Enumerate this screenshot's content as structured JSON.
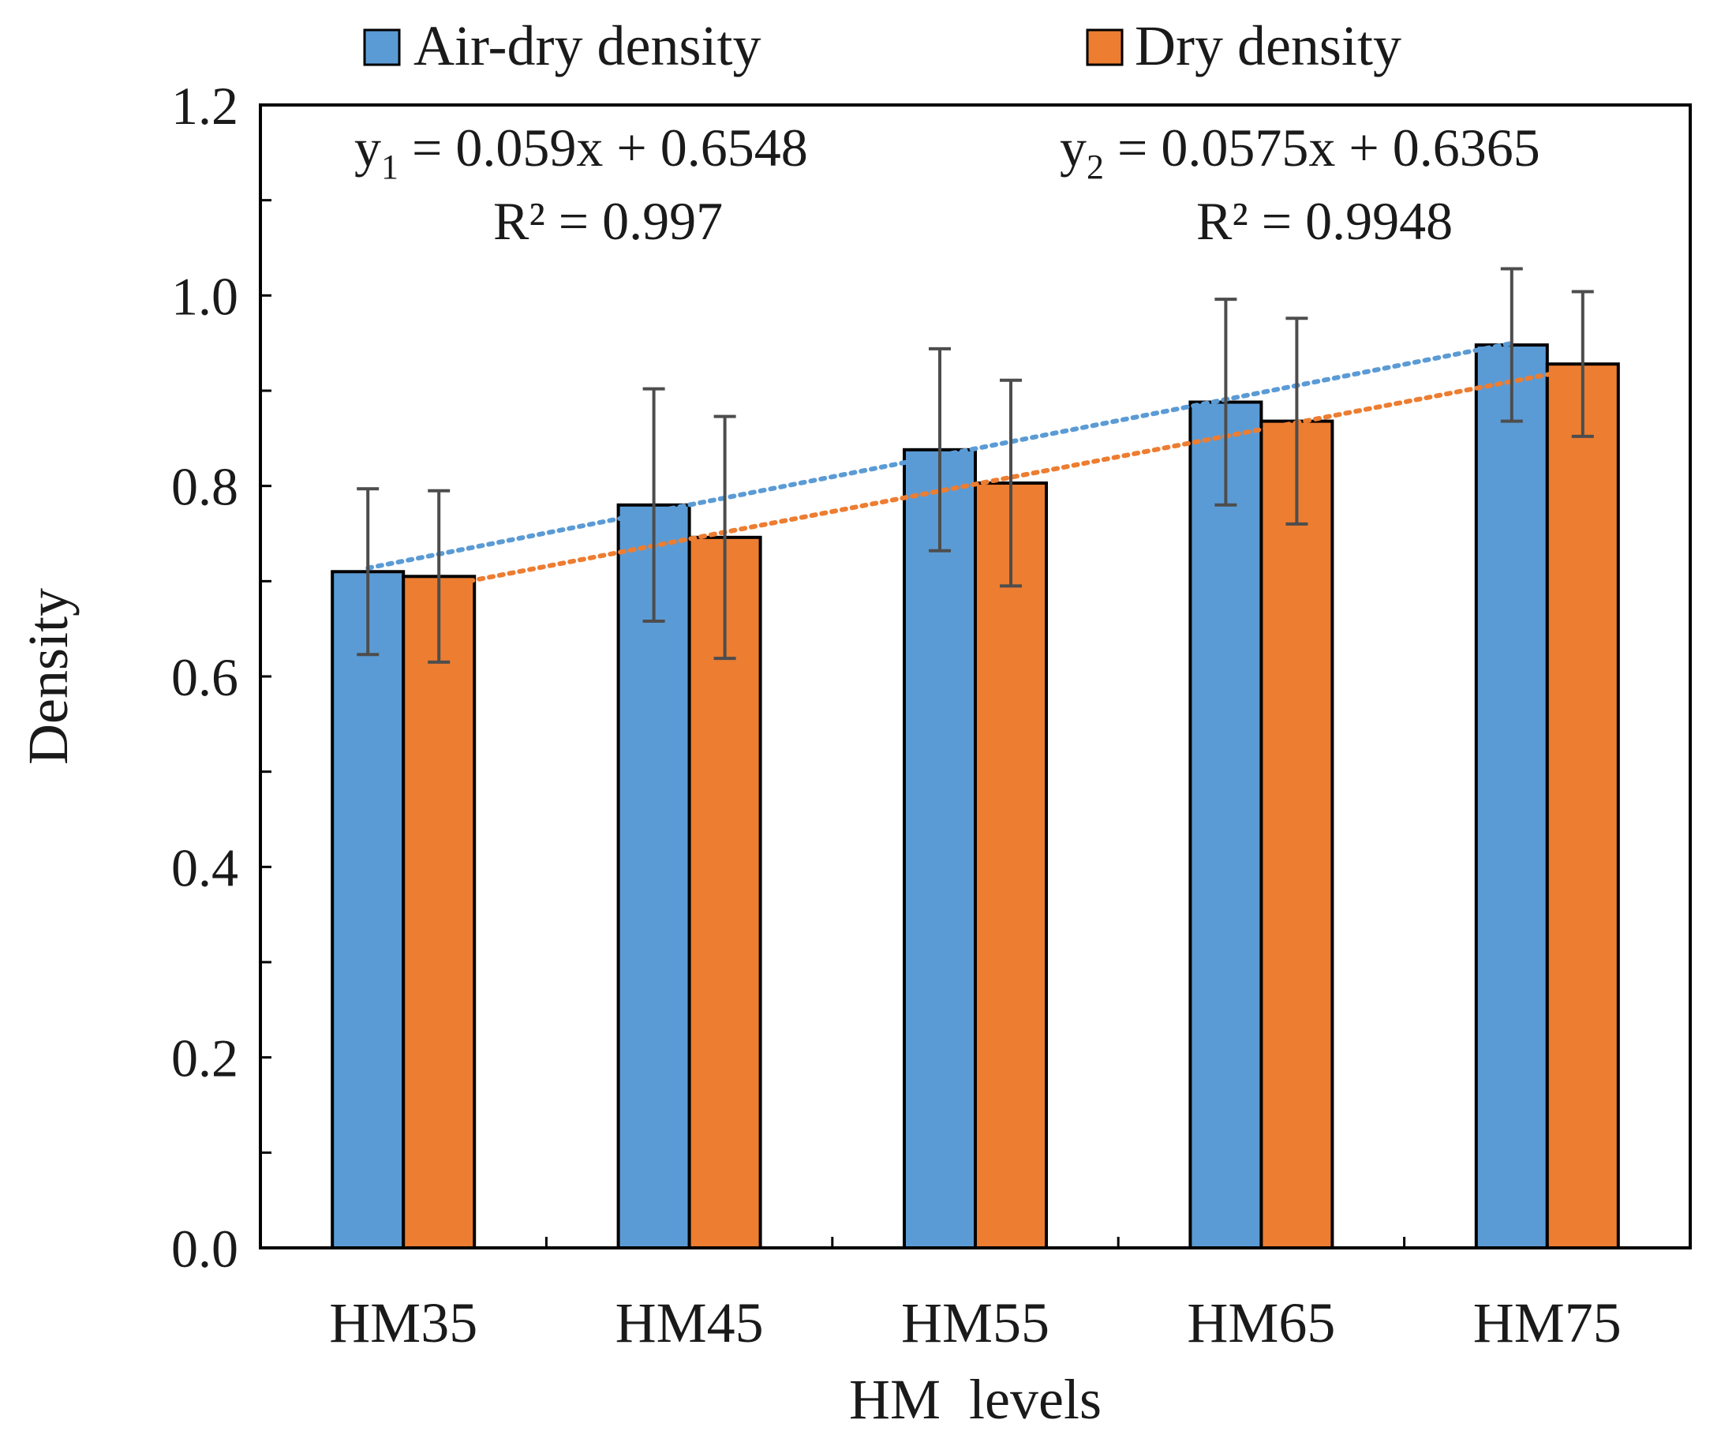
{
  "chart_data": {
    "type": "bar",
    "xlabel": "HM  levels",
    "ylabel": "Density",
    "ylim": [
      0,
      1.2
    ],
    "yticks": [
      "0.0",
      "0.2",
      "0.4",
      "0.6",
      "0.8",
      "1.0",
      "1.2"
    ],
    "ytick_values": [
      0,
      0.2,
      0.4,
      0.6,
      0.8,
      1.0,
      1.2
    ],
    "categories": [
      "HM35",
      "HM45",
      "HM55",
      "HM65",
      "HM75"
    ],
    "legend_position": "top",
    "grid": false,
    "series": [
      {
        "name": "Air-dry density",
        "color": "#5b9bd5",
        "values": [
          0.71,
          0.78,
          0.838,
          0.888,
          0.948
        ],
        "errors": [
          0.087,
          0.122,
          0.106,
          0.108,
          0.08
        ]
      },
      {
        "name": "Dry density",
        "color": "#ed7d31",
        "values": [
          0.705,
          0.746,
          0.803,
          0.868,
          0.928
        ],
        "errors": [
          0.09,
          0.127,
          0.108,
          0.108,
          0.076
        ]
      }
    ],
    "trendlines": [
      {
        "series": "Air-dry density",
        "slope": 0.059,
        "intercept": 0.6548,
        "color": "#5b9bd5",
        "equation_prefix": "y",
        "equation_sub": "1",
        "equation_rest": " = 0.059x + 0.6548",
        "r2_text": "R² = 0.997"
      },
      {
        "series": "Dry density",
        "slope": 0.0575,
        "intercept": 0.6365,
        "color": "#ed7d31",
        "equation_prefix": "y",
        "equation_sub": "2",
        "equation_rest": " = 0.0575x + 0.6365",
        "r2_text": "R² = 0.9948"
      }
    ]
  }
}
